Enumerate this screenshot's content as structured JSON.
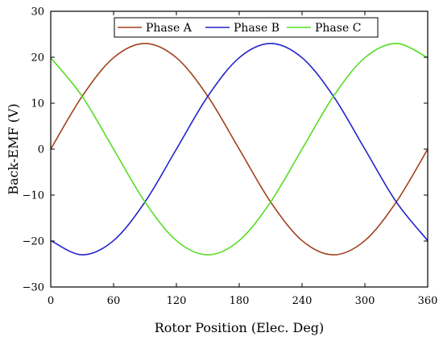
{
  "chart_data": {
    "type": "line",
    "title": "",
    "xlabel": "Rotor Position (Elec. Deg)",
    "ylabel": "Back-EMF (V)",
    "xlim": [
      0,
      360
    ],
    "ylim": [
      -30,
      30
    ],
    "xticks": [
      0,
      60,
      120,
      180,
      240,
      300,
      360
    ],
    "yticks": [
      -30,
      -20,
      -10,
      0,
      10,
      20,
      30
    ],
    "grid": false,
    "legend_position": "top-center",
    "x": [
      0,
      30,
      60,
      90,
      120,
      150,
      180,
      210,
      240,
      270,
      300,
      330,
      360
    ],
    "series": [
      {
        "name": "Phase A",
        "color": "#a0401c",
        "values": [
          0,
          11.5,
          19.9,
          23.0,
          19.9,
          11.5,
          0,
          -11.5,
          -19.9,
          -23.0,
          -19.9,
          -11.5,
          0
        ]
      },
      {
        "name": "Phase B",
        "color": "#2222cc",
        "values": [
          -19.9,
          -23.0,
          -19.9,
          -11.5,
          0,
          11.5,
          19.9,
          23.0,
          19.9,
          11.5,
          0,
          -11.5,
          -19.9
        ]
      },
      {
        "name": "Phase C",
        "color": "#55dd22",
        "values": [
          19.9,
          11.5,
          0,
          -11.5,
          -19.9,
          -23.0,
          -19.9,
          -11.5,
          0,
          11.5,
          19.9,
          23.0,
          19.9
        ]
      }
    ]
  }
}
